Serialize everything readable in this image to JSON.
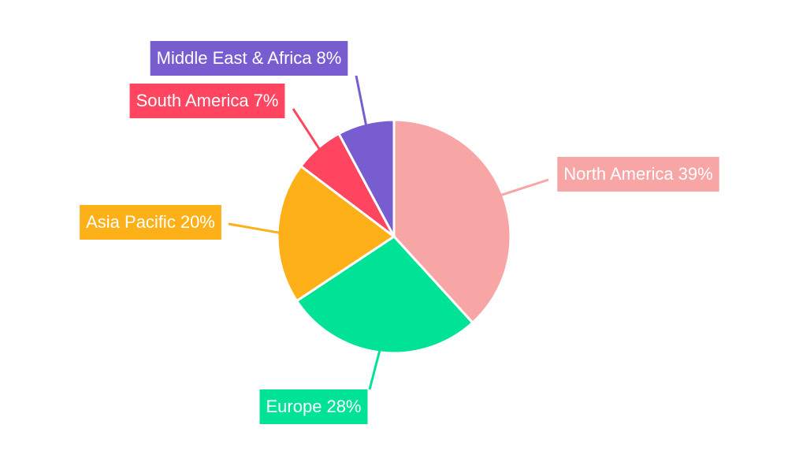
{
  "chart_data": {
    "type": "pie",
    "categories": [
      "North America",
      "Europe",
      "Asia Pacific",
      "South America",
      "Middle East & Africa"
    ],
    "values": [
      39,
      28,
      20,
      7,
      8
    ],
    "value_labels": [
      "39%",
      "28%",
      "20%",
      "7%",
      "8%"
    ],
    "colors": [
      "#f8a5a5",
      "#00e396",
      "#feb019",
      "#ff4560",
      "#775dd0"
    ]
  }
}
